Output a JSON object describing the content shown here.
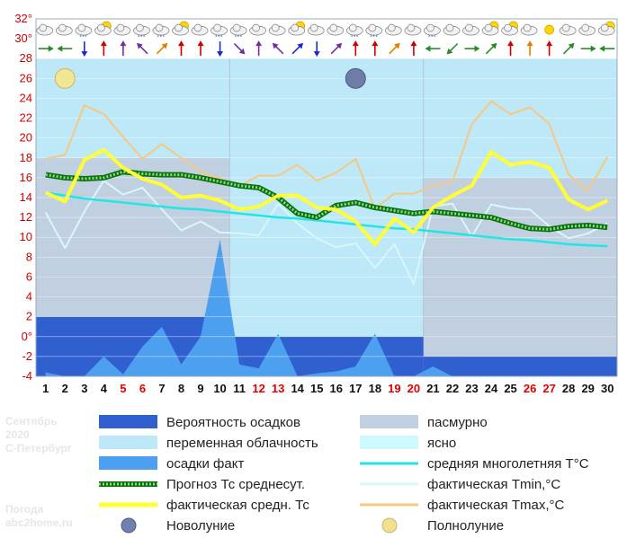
{
  "side_info": {
    "month": "Сентябрь",
    "year": "2020",
    "city": "С-Петербург",
    "brand_line1": "Погода",
    "brand_line2": "abc2home.ru"
  },
  "legend": [
    {
      "key": "precip_prob",
      "label": "Вероятность осадков",
      "color": "#3060d0",
      "kind": "box"
    },
    {
      "key": "overcast",
      "label": "пасмурно",
      "color": "#c0d0e0",
      "kind": "box"
    },
    {
      "key": "partly",
      "label": "переменная облачность",
      "color": "#bde8f7",
      "kind": "box"
    },
    {
      "key": "clear",
      "label": "ясно",
      "color": "#ccfaff",
      "kind": "box"
    },
    {
      "key": "precip_fact",
      "label": "осадки факт",
      "color": "#4da0ef",
      "kind": "box"
    },
    {
      "key": "norm",
      "label": "средняя многолетняя T°C",
      "color": "#22e6e6",
      "kind": "line"
    },
    {
      "key": "forecast",
      "label": "Прогноз Тс среднесут.",
      "color": "#169a16",
      "kind": "dotted"
    },
    {
      "key": "tmin",
      "label": "фактическая Tmin,°C",
      "color": "#d8f7fc",
      "kind": "line"
    },
    {
      "key": "actual",
      "label": "фактическая средн. Тс",
      "color": "#ffff33",
      "kind": "thick"
    },
    {
      "key": "tmax",
      "label": "фактическая Tmax,°C",
      "color": "#f6c882",
      "kind": "line"
    },
    {
      "key": "new_moon",
      "label": "Новолуние",
      "color": "#7080b0",
      "kind": "moon"
    },
    {
      "key": "full_moon",
      "label": "Полнолуние",
      "color": "#f0e090",
      "kind": "moon"
    }
  ],
  "chart_data": {
    "type": "line",
    "categories": [
      "1",
      "2",
      "3",
      "4",
      "5",
      "6",
      "7",
      "8",
      "9",
      "10",
      "11",
      "12",
      "13",
      "14",
      "15",
      "16",
      "17",
      "18",
      "19",
      "20",
      "21",
      "22",
      "23",
      "24",
      "25",
      "26",
      "27",
      "28",
      "29",
      "30"
    ],
    "weekend_days": [
      5,
      6,
      12,
      13,
      19,
      20,
      26,
      27
    ],
    "ylim": [
      -4,
      32
    ],
    "yticks": [
      "-4",
      "-2",
      "0°",
      "2",
      "4",
      "6",
      "8",
      "10",
      "12",
      "14",
      "16",
      "18",
      "20",
      "22",
      "24",
      "26",
      "28",
      "30°",
      "32°"
    ],
    "full_moon_day": 2,
    "new_moon_day": 17,
    "cloud_bands": [
      {
        "from_day": 1,
        "to_day": 10,
        "top": 18,
        "type": "overcast"
      },
      {
        "from_day": 1,
        "to_day": 10,
        "top": 28,
        "type": "partly"
      },
      {
        "from_day": 11,
        "to_day": 20,
        "top": 28,
        "type": "partly"
      },
      {
        "from_day": 21,
        "to_day": 30,
        "top": 16,
        "type": "overcast"
      },
      {
        "from_day": 21,
        "to_day": 30,
        "top": 28,
        "type": "partly"
      }
    ],
    "precip_probability_decades": [
      {
        "from_day": 1,
        "to_day": 10,
        "value": 2
      },
      {
        "from_day": 11,
        "to_day": 20,
        "value": 0
      },
      {
        "from_day": 21,
        "to_day": 30,
        "value": -2
      }
    ],
    "series": [
      {
        "key": "precip_fact",
        "values": [
          -3.6,
          -4,
          -4,
          -2,
          -3.8,
          -1,
          1,
          -2.8,
          0,
          9.8,
          -2.8,
          -3.2,
          0.3,
          -4,
          -3.7,
          -3.5,
          -3,
          0.3,
          -4,
          -4,
          -3,
          -4,
          -4,
          -4,
          -4,
          -4,
          -4,
          -4,
          -4,
          -4
        ]
      },
      {
        "key": "norm",
        "values": [
          14.5,
          14.2,
          13.9,
          13.7,
          13.5,
          13.3,
          13.1,
          12.9,
          12.8,
          12.6,
          12.4,
          12.2,
          12.0,
          11.9,
          11.7,
          11.5,
          11.3,
          11.1,
          10.9,
          10.8,
          10.6,
          10.4,
          10.2,
          10.0,
          9.8,
          9.7,
          9.5,
          9.3,
          9.2,
          9.1
        ]
      },
      {
        "key": "forecast",
        "values": [
          16.3,
          16.0,
          15.9,
          16.0,
          16.6,
          16.4,
          16.3,
          16.3,
          16.0,
          15.6,
          15.2,
          15.0,
          14.0,
          12.4,
          12.0,
          13.2,
          13.5,
          13.0,
          12.7,
          12.4,
          12.6,
          12.4,
          12.2,
          12.0,
          11.4,
          10.9,
          10.8,
          11.1,
          11.2,
          11.0
        ]
      },
      {
        "key": "tmin",
        "values": [
          12.5,
          8.9,
          12.6,
          15.7,
          14.3,
          15.0,
          12.8,
          10.7,
          11.6,
          10.5,
          10.4,
          10.2,
          13.4,
          11.4,
          9.9,
          9.0,
          9.4,
          6.9,
          9.3,
          5.3,
          13.1,
          13.4,
          10.1,
          13.3,
          12.9,
          12.8,
          11.1,
          9.9,
          10.4,
          11.4
        ]
      },
      {
        "key": "actual",
        "values": [
          14.5,
          13.6,
          17.8,
          18.8,
          17.0,
          15.9,
          15.3,
          14.0,
          14.2,
          13.7,
          12.8,
          13.1,
          14.2,
          14.2,
          13.0,
          12.8,
          11.6,
          9.3,
          11.9,
          10.5,
          13.0,
          14.2,
          15.2,
          18.6,
          17.3,
          17.6,
          17.0,
          13.8,
          12.8,
          13.7
        ]
      },
      {
        "key": "tmax",
        "values": [
          17.9,
          18.3,
          23.3,
          22.4,
          20.1,
          17.9,
          19.4,
          18.0,
          16.6,
          15.9,
          15.2,
          16.2,
          16.2,
          17.3,
          15.7,
          16.5,
          17.9,
          12.9,
          14.4,
          14.4,
          15.2,
          15.6,
          21.4,
          23.7,
          22.4,
          23.1,
          21.4,
          16.3,
          14.7,
          18.1
        ]
      }
    ],
    "wind_directions_deg": [
      90,
      270,
      180,
      0,
      0,
      315,
      45,
      0,
      0,
      180,
      135,
      0,
      315,
      45,
      180,
      45,
      0,
      0,
      45,
      0,
      270,
      225,
      90,
      45,
      0,
      0,
      0,
      45,
      90,
      270
    ],
    "wind_colors": [
      "#2a8a2a",
      "#2a8a2a",
      "#1a2ad0",
      "#d00000",
      "#7030a0",
      "#7030a0",
      "#e08000",
      "#d00000",
      "#d00000",
      "#1a2ad0",
      "#7030a0",
      "#7030a0",
      "#7030a0",
      "#1a2ad0",
      "#1a2ad0",
      "#7030a0",
      "#d00000",
      "#d00000",
      "#e08000",
      "#d00000",
      "#2a8a2a",
      "#2a8a2a",
      "#2a8a2a",
      "#2a8a2a",
      "#d00000",
      "#e08000",
      "#d00000",
      "#2a8a2a",
      "#2a8a2a",
      "#2a8a2a"
    ],
    "weather_icons": [
      "cloud-icon",
      "cloud-icon",
      "rain-cloud-icon",
      "sun-cloud-icon",
      "cloud-icon",
      "rain-cloud-icon",
      "rain-cloud-icon",
      "sun-cloud-icon",
      "cloud-icon",
      "rain-cloud-icon",
      "rain-cloud-icon",
      "cloud-icon",
      "cloud-icon",
      "sun-cloud-icon",
      "cloud-icon",
      "cloud-icon",
      "rain-cloud-icon",
      "rain-cloud-icon",
      "cloud-icon",
      "cloud-icon",
      "rain-cloud-icon",
      "cloud-icon",
      "cloud-icon",
      "sun-cloud-icon",
      "sun-cloud-icon",
      "cloud-icon",
      "sun-icon",
      "cloud-icon",
      "cloud-icon",
      "sun-cloud-icon"
    ]
  }
}
